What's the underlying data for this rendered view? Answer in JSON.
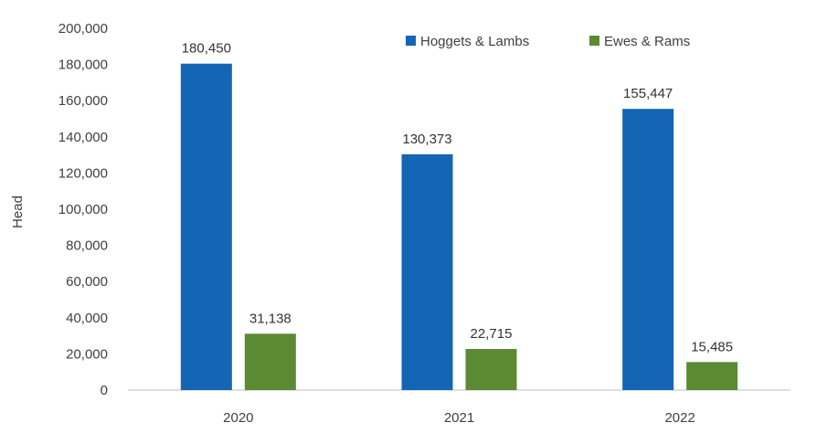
{
  "chart_data": {
    "type": "bar",
    "title": "",
    "xlabel": "",
    "ylabel": "Head",
    "categories": [
      "2020",
      "2021",
      "2022"
    ],
    "series": [
      {
        "name": "Hoggets & Lambs",
        "color": "#1565b5",
        "values": [
          180450,
          130373,
          155447
        ],
        "labels": [
          "180,450",
          "130,373",
          "155,447"
        ]
      },
      {
        "name": "Ewes & Rams",
        "color": "#5a8a32",
        "values": [
          31138,
          22715,
          15485
        ],
        "labels": [
          "31,138",
          "22,715",
          "15,485"
        ]
      }
    ],
    "ylim": [
      0,
      200000
    ],
    "yticks": [
      0,
      20000,
      40000,
      60000,
      80000,
      100000,
      120000,
      140000,
      160000,
      180000,
      200000
    ],
    "ytick_labels": [
      "0",
      "20,000",
      "40,000",
      "60,000",
      "80,000",
      "100,000",
      "120,000",
      "140,000",
      "160,000",
      "180,000",
      "200,000"
    ],
    "grid": false,
    "legend_position": "top-right"
  }
}
